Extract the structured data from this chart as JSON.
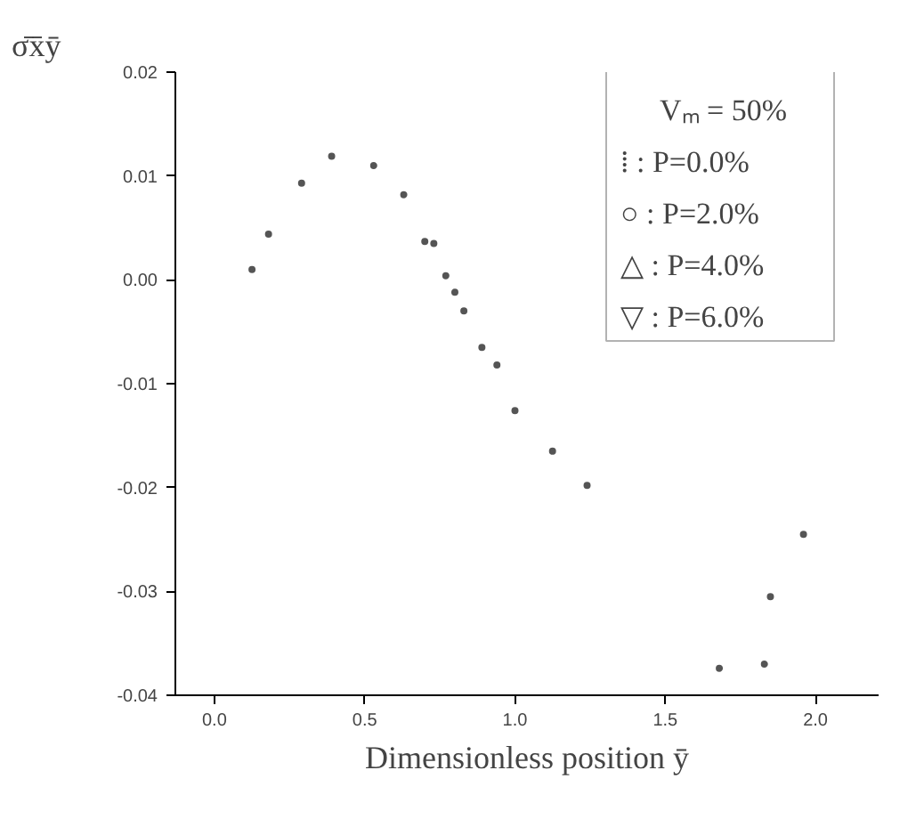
{
  "chart_data": {
    "type": "scatter",
    "xlabel": "Dimensionless position ȳ",
    "ylabel": "σ̄x̄ȳ",
    "annotations": [
      "Vₘ = 50%",
      "⁞ :  P=0.0%",
      "○ :  P=2.0%",
      "△ :  P=4.0%",
      "▽ :  P=6.0%"
    ],
    "x": [
      0.125,
      0.18,
      0.29,
      0.39,
      0.53,
      0.63,
      0.7,
      0.73,
      0.77,
      0.8,
      0.83,
      0.89,
      0.94,
      1.0,
      1.125,
      1.24,
      1.68,
      1.83,
      1.85,
      1.96
    ],
    "series": [
      {
        "color": "#555555",
        "values": [
          0.001,
          0.0044,
          0.0093,
          0.0119,
          0.011,
          0.0082,
          0.0037,
          0.0035,
          0.0004,
          -0.0012,
          -0.003,
          -0.0065,
          -0.0082,
          -0.0126,
          -0.0165,
          -0.0198,
          -0.0374,
          -0.037,
          -0.0305,
          -0.0245
        ]
      }
    ],
    "marker": "circle",
    "xlim": [
      -0.13,
      2.21
    ],
    "ylim": [
      -0.04,
      0.02
    ],
    "xticks": [
      {
        "value": 0,
        "label": "0.0"
      },
      {
        "value": 0.5,
        "label": "0.5"
      },
      {
        "value": 1,
        "label": "1.0"
      },
      {
        "value": 1.5,
        "label": "1.5"
      },
      {
        "value": 2,
        "label": "2.0"
      }
    ],
    "yticks": [
      {
        "value": -0.04,
        "label": "-0.04"
      },
      {
        "value": -0.03,
        "label": "-0.03"
      },
      {
        "value": -0.02,
        "label": "-0.02"
      },
      {
        "value": -0.01,
        "label": "-0.01"
      },
      {
        "value": 0,
        "label": "0.00"
      },
      {
        "value": 0.01,
        "label": "0.01"
      },
      {
        "value": 0.02,
        "label": "0.02"
      }
    ],
    "grid": false
  }
}
